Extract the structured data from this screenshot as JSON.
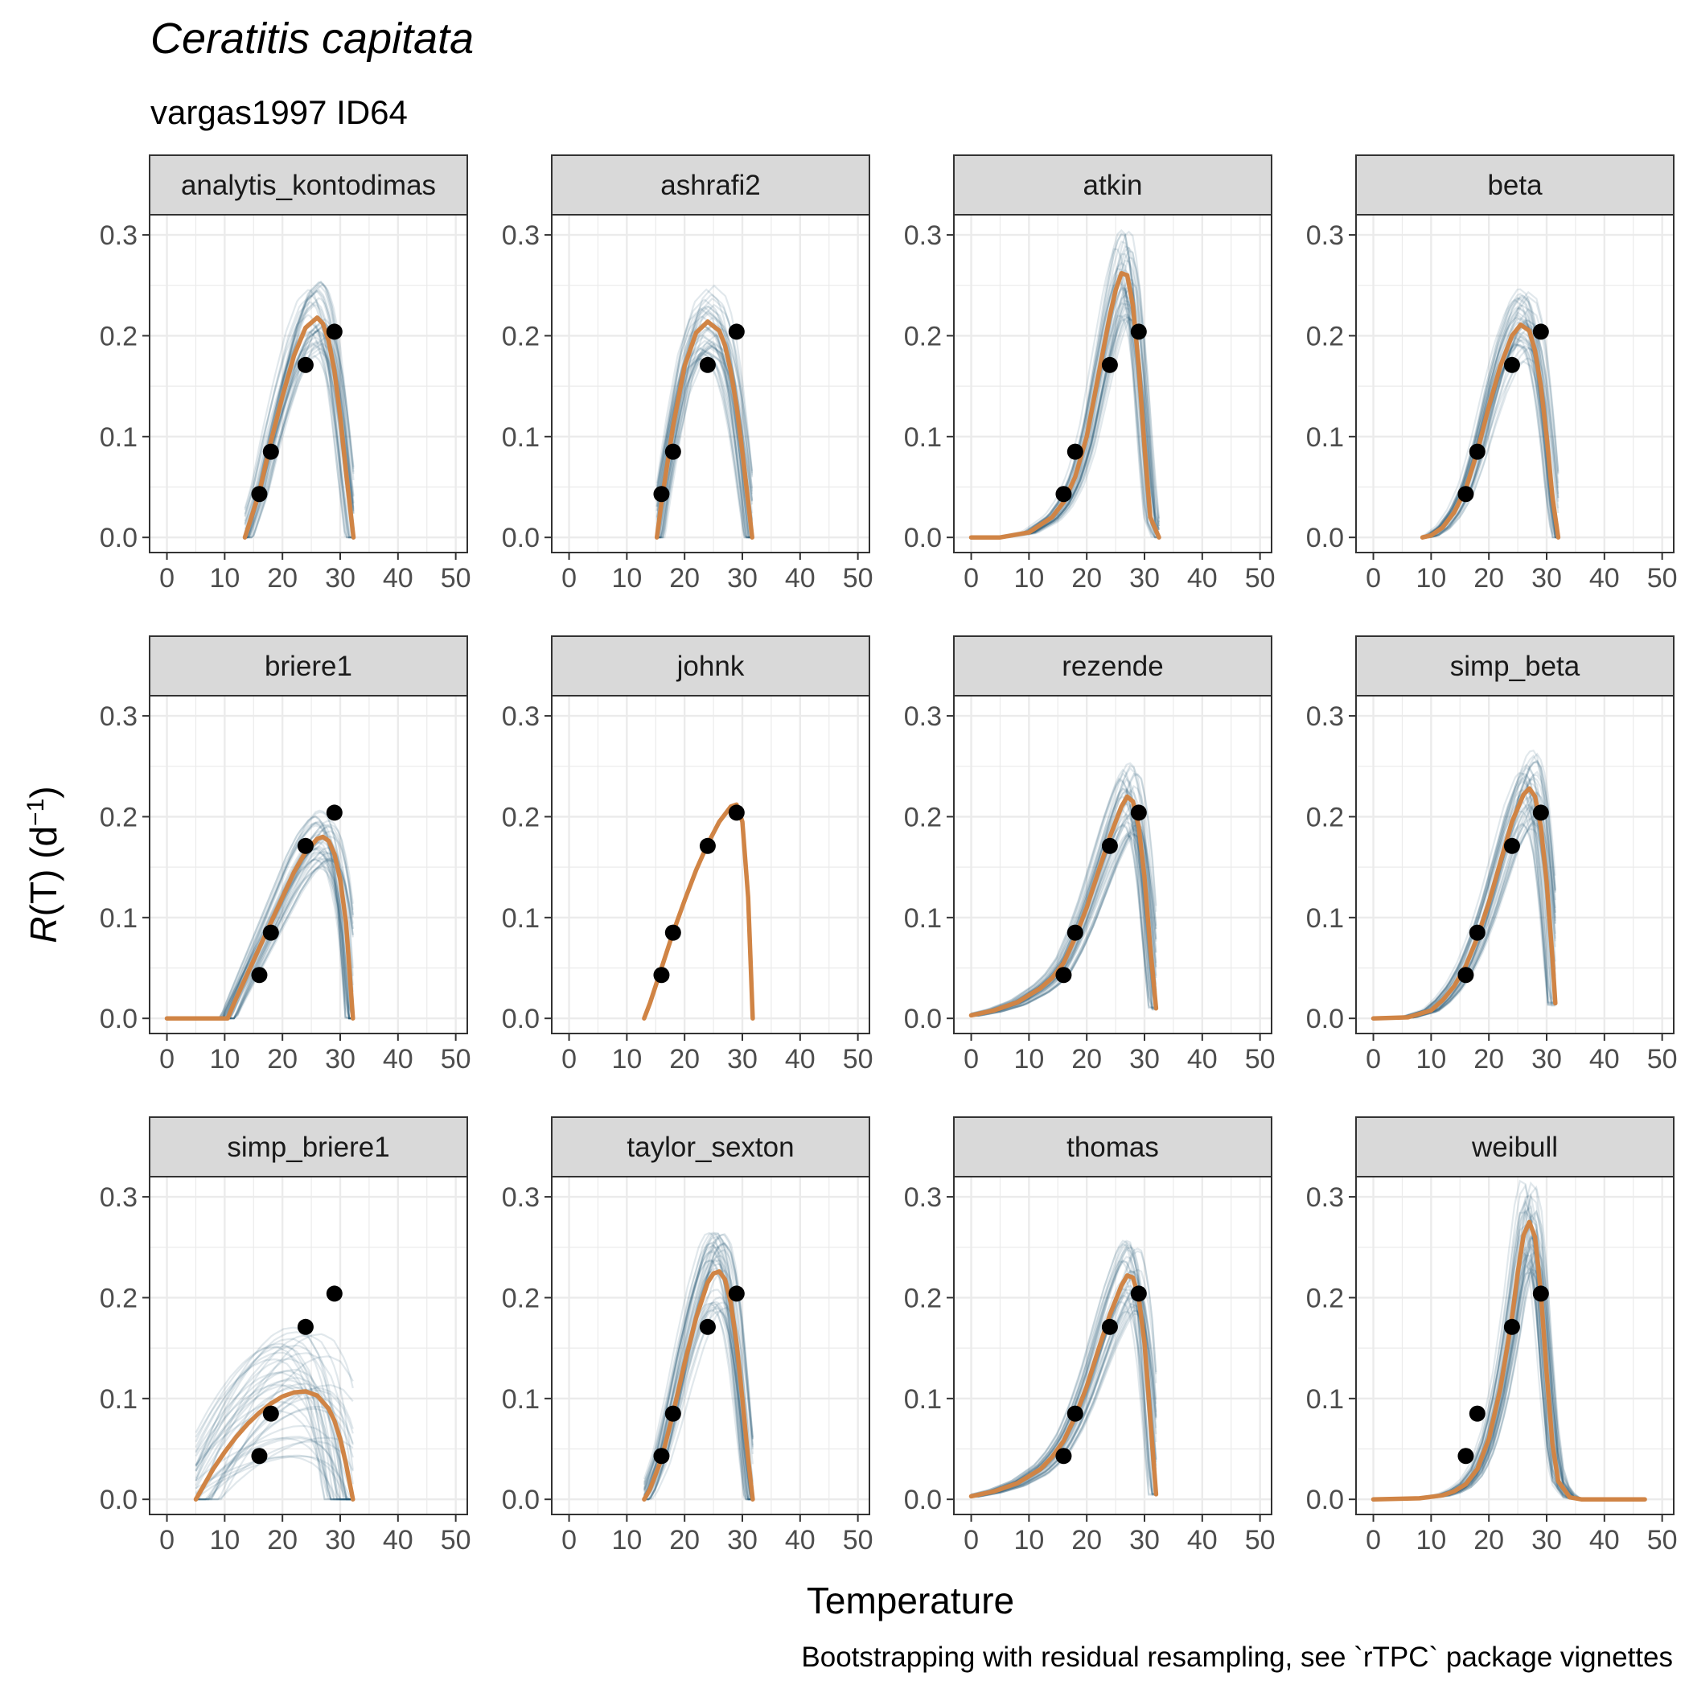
{
  "title": "Ceratitis capitata",
  "subtitle": "vargas1997 ID64",
  "caption": "Bootstrapping with residual resampling, see `rTPC` package vignettes",
  "colors": {
    "fit": "#D08445",
    "bootstrap": "#1B4F6B",
    "points": "#000000",
    "strip_fill": "#D9D9D9",
    "grid": "#EBEBEB"
  },
  "chart_data": {
    "type": "line",
    "xlabel": "Temperature",
    "ylabel": "R(T) (d⁻¹)",
    "xlim": [
      -3,
      52
    ],
    "ylim": [
      -0.015,
      0.32
    ],
    "x_ticks": [
      "0",
      "10",
      "20",
      "30",
      "40",
      "50"
    ],
    "y_ticks": [
      "0.0",
      "0.1",
      "0.2",
      "0.3"
    ],
    "x_tick_values": [
      0,
      10,
      20,
      30,
      40,
      50
    ],
    "y_tick_values": [
      0,
      0.1,
      0.2,
      0.3
    ],
    "grid": true,
    "points": {
      "x": [
        16,
        18,
        24,
        29
      ],
      "y": [
        0.043,
        0.085,
        0.171,
        0.204
      ]
    },
    "panels": [
      {
        "name": "analytis_kontodimas",
        "fit": {
          "x": [
            13.5,
            16,
            18,
            20,
            22,
            24,
            26,
            27,
            28,
            29,
            30,
            31,
            32.3
          ],
          "y": [
            0.0,
            0.045,
            0.095,
            0.14,
            0.18,
            0.208,
            0.218,
            0.212,
            0.195,
            0.165,
            0.12,
            0.065,
            0.0
          ]
        }
      },
      {
        "name": "ashrafi2",
        "fit": {
          "x": [
            15.2,
            16,
            18,
            20,
            22,
            24,
            26,
            27,
            28,
            29,
            30,
            31,
            31.7
          ],
          "y": [
            0.0,
            0.035,
            0.11,
            0.17,
            0.203,
            0.214,
            0.205,
            0.19,
            0.165,
            0.13,
            0.085,
            0.035,
            0.0
          ]
        }
      },
      {
        "name": "atkin",
        "fit": {
          "x": [
            0,
            5,
            10,
            14,
            16,
            18,
            20,
            22,
            24,
            25,
            26,
            27,
            28,
            29,
            30,
            31,
            32.5
          ],
          "y": [
            0.0,
            0.0,
            0.005,
            0.02,
            0.035,
            0.06,
            0.1,
            0.16,
            0.22,
            0.245,
            0.262,
            0.26,
            0.23,
            0.17,
            0.09,
            0.02,
            0.0
          ]
        }
      },
      {
        "name": "beta",
        "fit": {
          "x": [
            8.5,
            10,
            12,
            14,
            16,
            18,
            20,
            22,
            24,
            25.5,
            27,
            28,
            29,
            30,
            31,
            32
          ],
          "y": [
            0.0,
            0.002,
            0.01,
            0.025,
            0.048,
            0.085,
            0.13,
            0.17,
            0.2,
            0.211,
            0.205,
            0.185,
            0.15,
            0.1,
            0.04,
            0.0
          ]
        }
      },
      {
        "name": "briere1",
        "fit": {
          "x": [
            0,
            10.5,
            12,
            14,
            16,
            18,
            20,
            22,
            24,
            26,
            27,
            28,
            29,
            30,
            31,
            32.2
          ],
          "y": [
            0.0,
            0.0,
            0.02,
            0.045,
            0.07,
            0.095,
            0.12,
            0.145,
            0.165,
            0.178,
            0.18,
            0.176,
            0.163,
            0.138,
            0.095,
            0.0
          ]
        }
      },
      {
        "name": "johnk",
        "fit": {
          "x": [
            13,
            14,
            16,
            18,
            20,
            22,
            24,
            26,
            28,
            29,
            30,
            31,
            31.8
          ],
          "y": [
            0.0,
            0.015,
            0.05,
            0.085,
            0.117,
            0.147,
            0.173,
            0.195,
            0.21,
            0.212,
            0.195,
            0.12,
            0.0
          ]
        }
      },
      {
        "name": "rezende",
        "fit": {
          "x": [
            0,
            4,
            8,
            12,
            14,
            16,
            18,
            20,
            22,
            24,
            26,
            27,
            28,
            29,
            30,
            31,
            32
          ],
          "y": [
            0.003,
            0.008,
            0.016,
            0.03,
            0.04,
            0.055,
            0.08,
            0.11,
            0.145,
            0.18,
            0.21,
            0.22,
            0.215,
            0.19,
            0.14,
            0.07,
            0.01
          ]
        }
      },
      {
        "name": "simp_beta",
        "fit": {
          "x": [
            0,
            6,
            10,
            12,
            14,
            16,
            18,
            20,
            22,
            24,
            26,
            27,
            28,
            29,
            30,
            31,
            31.5
          ],
          "y": [
            0.0,
            0.001,
            0.008,
            0.018,
            0.032,
            0.052,
            0.08,
            0.115,
            0.155,
            0.195,
            0.222,
            0.228,
            0.22,
            0.19,
            0.135,
            0.06,
            0.015
          ]
        }
      },
      {
        "name": "simp_briere1",
        "fit": {
          "x": [
            5,
            8,
            10,
            12,
            14,
            16,
            18,
            20,
            22,
            24,
            26,
            28,
            29,
            30,
            31,
            32.2
          ],
          "y": [
            0.0,
            0.03,
            0.047,
            0.062,
            0.075,
            0.086,
            0.095,
            0.102,
            0.106,
            0.107,
            0.103,
            0.09,
            0.078,
            0.06,
            0.035,
            0.0
          ]
        }
      },
      {
        "name": "taylor_sexton",
        "fit": {
          "x": [
            13,
            14,
            16,
            18,
            20,
            22,
            24,
            25,
            26,
            27,
            28,
            29,
            30,
            31,
            31.8
          ],
          "y": [
            0.0,
            0.01,
            0.04,
            0.085,
            0.135,
            0.18,
            0.215,
            0.224,
            0.226,
            0.218,
            0.195,
            0.155,
            0.1,
            0.04,
            0.0
          ]
        }
      },
      {
        "name": "thomas",
        "fit": {
          "x": [
            0,
            4,
            8,
            12,
            14,
            16,
            18,
            20,
            22,
            24,
            26,
            27,
            28,
            29,
            30,
            31,
            32
          ],
          "y": [
            0.003,
            0.008,
            0.016,
            0.03,
            0.042,
            0.058,
            0.082,
            0.112,
            0.148,
            0.183,
            0.212,
            0.222,
            0.22,
            0.2,
            0.155,
            0.08,
            0.005
          ]
        }
      },
      {
        "name": "weibull",
        "fit": {
          "x": [
            0,
            8,
            12,
            14,
            16,
            18,
            20,
            22,
            24,
            25,
            26,
            27,
            28,
            29,
            30,
            31,
            32,
            34,
            36,
            40,
            47
          ],
          "y": [
            0.0,
            0.001,
            0.004,
            0.008,
            0.015,
            0.03,
            0.06,
            0.11,
            0.18,
            0.225,
            0.262,
            0.275,
            0.26,
            0.205,
            0.125,
            0.055,
            0.018,
            0.002,
            0.0,
            0.0,
            0.0
          ]
        }
      }
    ]
  }
}
